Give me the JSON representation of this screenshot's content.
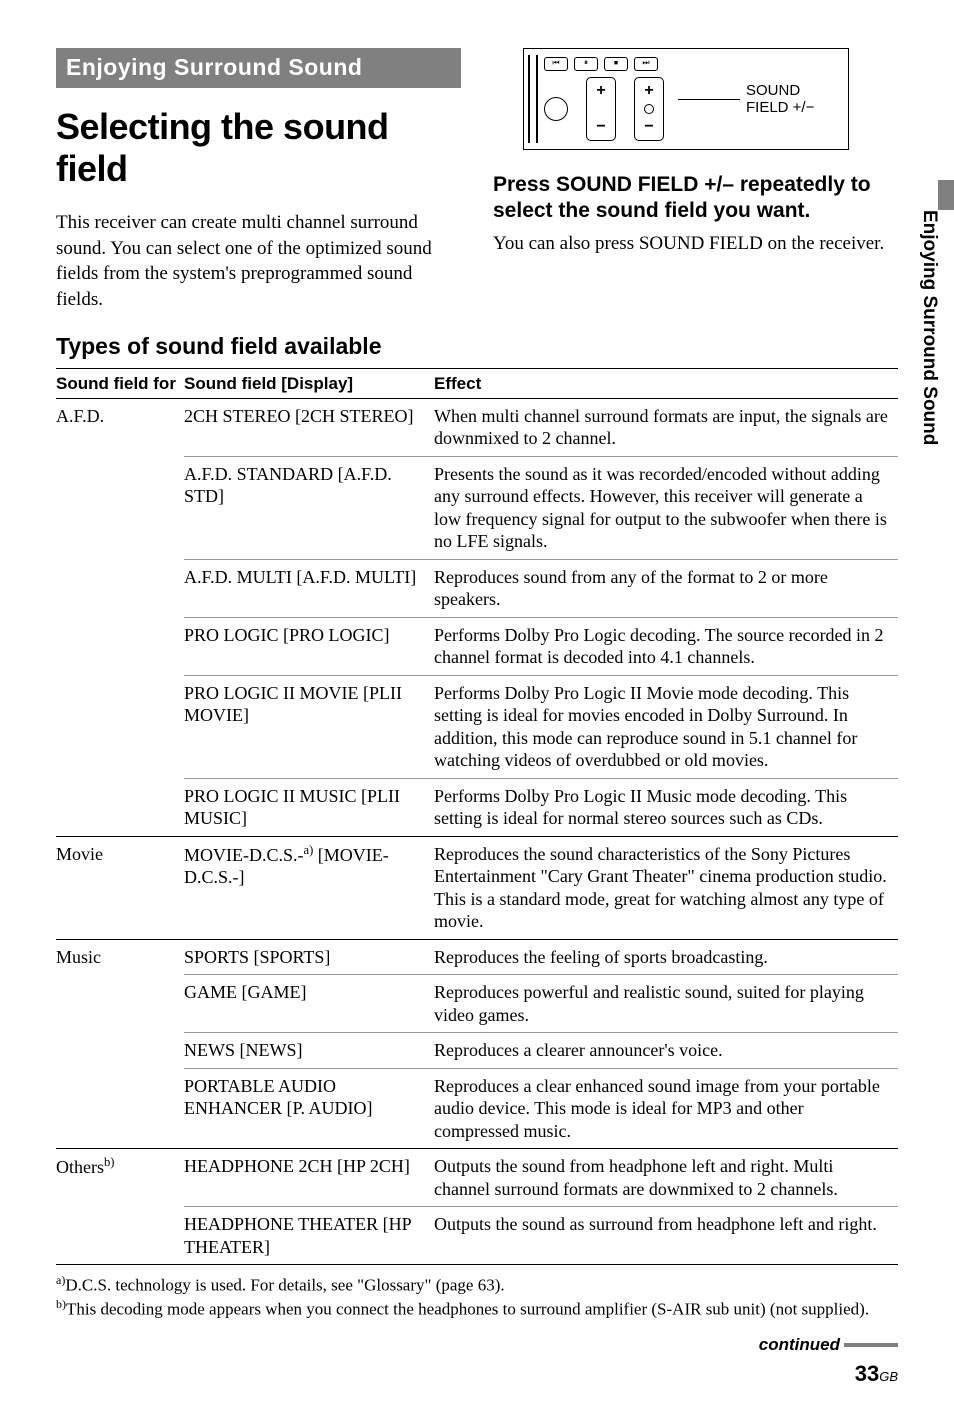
{
  "meta": {
    "page_number": "33",
    "page_suffix": "GB",
    "continued_label": "continued"
  },
  "side_tab_text": "Enjoying Surround Sound",
  "banner": "Enjoying Surround Sound",
  "title": "Selecting the sound field",
  "intro": "This receiver can create multi channel surround sound. You can select one of the optimized sound fields from the system's preprogrammed sound fields.",
  "subheading": "Types of sound field available",
  "remote": {
    "buttons": {
      "prev": "⏮",
      "pause": "⏸",
      "stop": "⏹",
      "next": "⏭"
    },
    "volume": {
      "plus": "+",
      "minus": "−"
    },
    "pointer_label_line1": "SOUND",
    "pointer_label_line2": "FIELD +/−"
  },
  "instruction": "Press SOUND FIELD +/– repeatedly to select the sound field you want.",
  "follow_text": "You can also press SOUND FIELD on the receiver.",
  "table": {
    "headers": {
      "cat": "Sound field for",
      "sf": "Sound field [Display]",
      "eff": "Effect"
    },
    "groups": [
      {
        "cat": "A.F.D.",
        "rows": [
          {
            "sf": "2CH STEREO [2CH STEREO]",
            "eff": "When multi channel surround formats are input, the signals are downmixed to 2 channel."
          },
          {
            "sf": "A.F.D. STANDARD [A.F.D. STD]",
            "eff": "Presents the sound as it was recorded/encoded without adding any surround effects. However, this receiver will generate a low frequency signal for output to the subwoofer when there is no LFE signals."
          },
          {
            "sf": "A.F.D. MULTI [A.F.D. MULTI]",
            "eff": "Reproduces sound from any of the format to 2 or more speakers."
          },
          {
            "sf": "PRO LOGIC [PRO LOGIC]",
            "eff": "Performs Dolby Pro Logic decoding. The source recorded in 2 channel format is decoded into 4.1 channels."
          },
          {
            "sf": "PRO LOGIC II MOVIE [PLII MOVIE]",
            "eff": "Performs Dolby Pro Logic II Movie mode decoding. This setting is ideal for movies encoded in Dolby Surround. In addition, this mode can reproduce sound in 5.1 channel for watching videos of overdubbed or old movies."
          },
          {
            "sf": "PRO LOGIC II MUSIC [PLII MUSIC]",
            "eff": "Performs Dolby Pro Logic II Music mode decoding. This setting is ideal for normal stereo sources such as CDs."
          }
        ]
      },
      {
        "cat": "Movie",
        "rows": [
          {
            "sf_html": "MOVIE-D.C.S.-<sup>a)</sup> [MOVIE-D.C.S.-]",
            "eff": "Reproduces the sound characteristics of the Sony Pictures Entertainment \"Cary Grant Theater\" cinema production studio. This is a standard mode, great for watching almost any type of movie."
          }
        ]
      },
      {
        "cat": "Music",
        "rows": [
          {
            "sf": "SPORTS [SPORTS]",
            "eff": "Reproduces the feeling of sports broadcasting."
          },
          {
            "sf": "GAME [GAME]",
            "eff": "Reproduces powerful and realistic sound, suited for playing video games."
          },
          {
            "sf": "NEWS [NEWS]",
            "eff": "Reproduces a clearer announcer's voice."
          },
          {
            "sf": "PORTABLE AUDIO ENHANCER [P. AUDIO]",
            "eff": "Reproduces a clear enhanced sound image from your portable audio device. This mode is ideal for MP3 and other compressed music."
          }
        ]
      },
      {
        "cat_html": "Others<sup>b)</sup>",
        "rows": [
          {
            "sf": "HEADPHONE 2CH [HP 2CH]",
            "eff": "Outputs the sound from headphone left and right. Multi channel surround formats are downmixed to 2 channels."
          },
          {
            "sf": "HEADPHONE THEATER [HP THEATER]",
            "eff": "Outputs the sound as surround from headphone left and right."
          }
        ]
      }
    ]
  },
  "footnotes": {
    "a": "D.C.S. technology is used. For details, see \"Glossary\" (page 63).",
    "b": "This decoding mode appears when you connect the headphones to surround amplifier (S-AIR sub unit) (not supplied)."
  }
}
